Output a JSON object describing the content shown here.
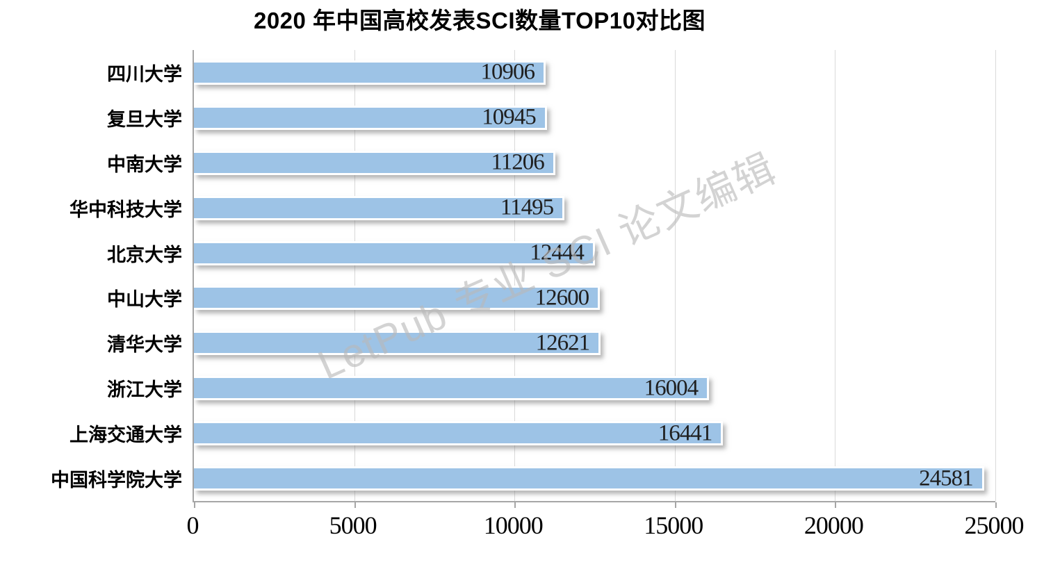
{
  "chart_data": {
    "type": "bar",
    "orientation": "horizontal",
    "title": "2020 年中国高校发表SCI数量TOP10对比图",
    "categories": [
      "四川大学",
      "复旦大学",
      "中南大学",
      "华中科技大学",
      "北京大学",
      "中山大学",
      "清华大学",
      "浙江大学",
      "上海交通大学",
      "中国科学院大学"
    ],
    "values": [
      10906,
      10945,
      11206,
      11495,
      12444,
      12600,
      12621,
      16004,
      16441,
      24581
    ],
    "x_ticks": [
      0,
      5000,
      10000,
      15000,
      20000,
      25000
    ],
    "xlim": [
      0,
      25000
    ],
    "xlabel": "",
    "ylabel": "",
    "grid": "vertical-only",
    "legend": "none",
    "data_labels": "inside-end",
    "colors": {
      "bar_fill": "#9DC3E6",
      "bar_border": "#FFFFFF",
      "gridline": "#D9D9D9",
      "axis_line": "#A6A6A6",
      "label_text": "#000000",
      "value_text": "#1F1F1F"
    }
  },
  "watermark": {
    "text": "LetPub 专业 SCI 论文编辑",
    "color": "#B9B9B9",
    "angle_deg": -24
  }
}
